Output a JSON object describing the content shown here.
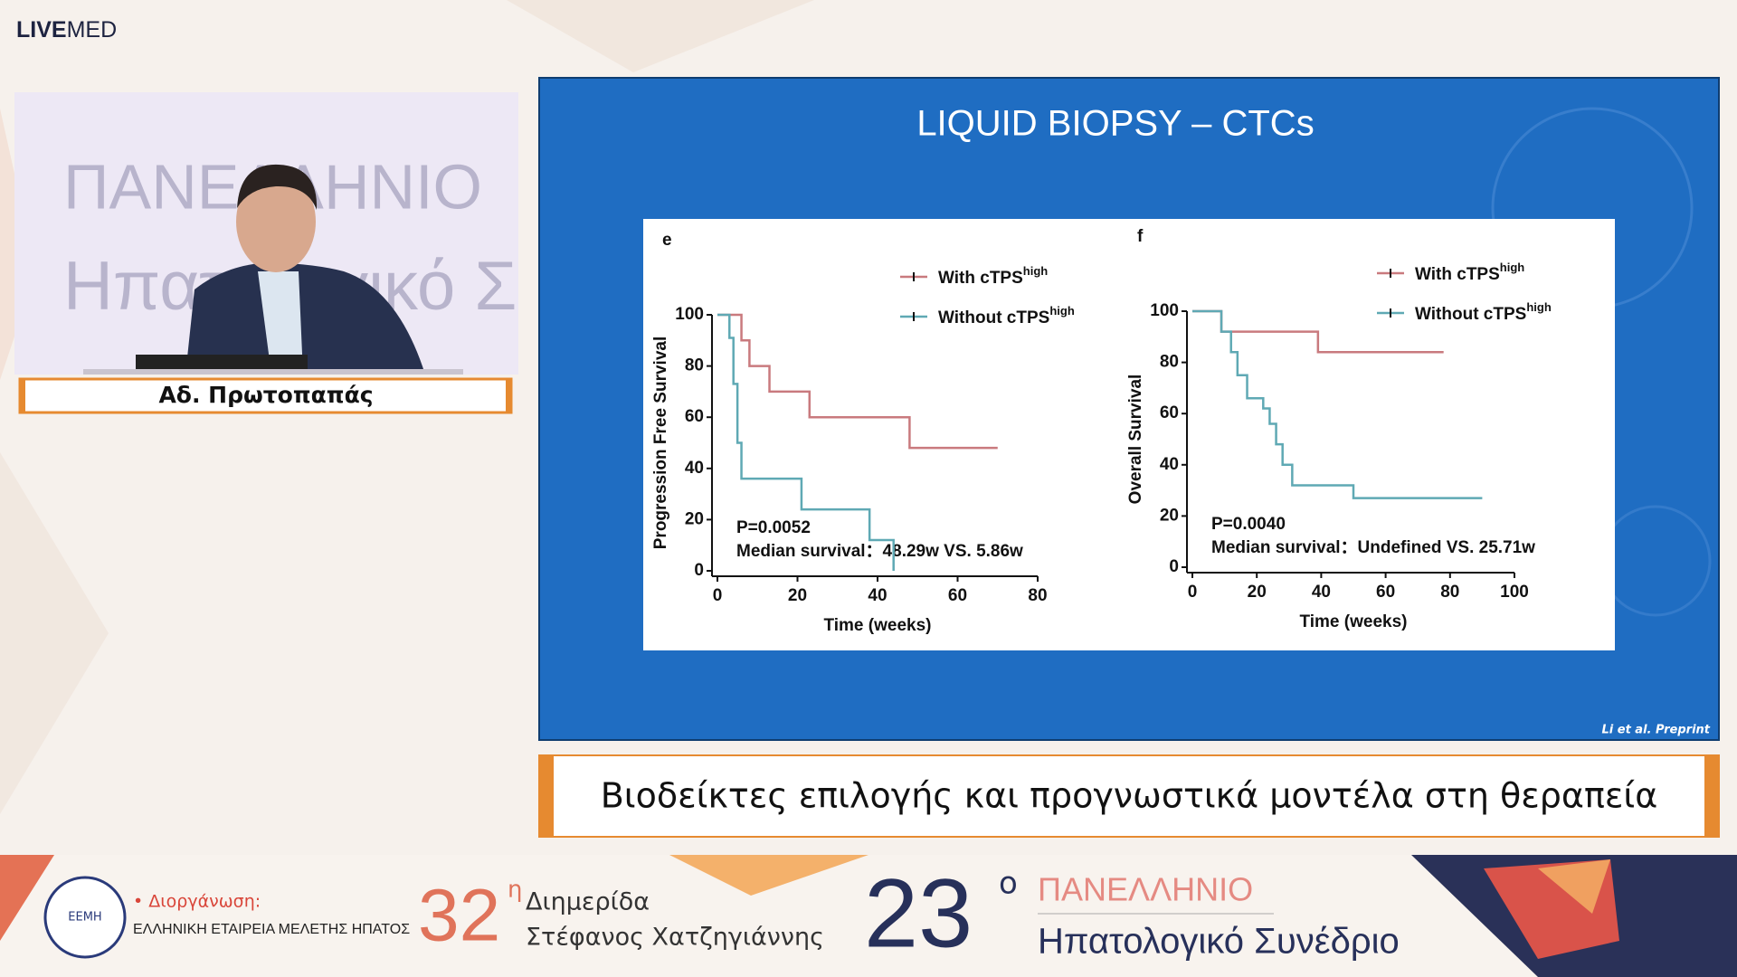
{
  "header": {
    "logo_bold": "LIVE",
    "logo_light": "MED"
  },
  "video": {
    "backdrop_line1": "ΠΑΝΕΛΛΗΝΙΟ",
    "backdrop_line2": "Ηπατολογικό Σ"
  },
  "speaker": {
    "name": "Αδ. Πρωτοπαπάς"
  },
  "slide": {
    "title": "LIQUID BIOPSY – CTCs",
    "citation": "Li et al. Preprint"
  },
  "subtitle": "Βιοδείκτες επιλογής και προγνωστικά μοντέλα στη θεραπεία",
  "footer": {
    "organizer_label": "• Διοργάνωση:",
    "organizer": "ΕΛΛΗΝΙΚΗ ΕΤΑΙΡΕΙΑ ΜΕΛΕΤΗΣ ΗΠΑΤΟΣ",
    "logo": "ΕΕΜΗ",
    "event1_number": "32",
    "event1_sup": "η",
    "event1_line1": "Διημερίδα",
    "event1_line2": "Στέφανος Χατζηγιάννης",
    "event2_number": "23",
    "event2_sup": "ο",
    "event2_line1": "ΠΑΝΕΛΛΗΝΙΟ",
    "event2_line2": "Ηπατολογικό Συνέδριο"
  },
  "chart_data": [
    {
      "type": "step",
      "panel": "e",
      "ylabel": "Progression Free Survival",
      "xlabel": "Time (weeks)",
      "xlim": [
        0,
        80
      ],
      "ylim": [
        0,
        100
      ],
      "xticks": [
        0,
        20,
        40,
        60,
        80
      ],
      "yticks": [
        0,
        20,
        40,
        60,
        80,
        100
      ],
      "legend": "upper right",
      "annotations": [
        "P=0.0052",
        "Median survival：48.29w VS. 5.86w"
      ],
      "series": [
        {
          "name": "With cTPS",
          "name_sup": "high",
          "color": "#c97a7e",
          "x": [
            0,
            6,
            8,
            13,
            23,
            48,
            70
          ],
          "values": [
            100,
            90,
            80,
            70,
            60,
            48,
            48
          ]
        },
        {
          "name": "Without cTPS",
          "name_sup": "high",
          "color": "#5fa9b4",
          "x": [
            0,
            3,
            4,
            5,
            6,
            21,
            38,
            44
          ],
          "values": [
            100,
            91,
            73,
            50,
            36,
            24,
            12,
            0
          ]
        }
      ]
    },
    {
      "type": "step",
      "panel": "f",
      "ylabel": "Overall Survival",
      "xlabel": "Time (weeks)",
      "xlim": [
        0,
        100
      ],
      "ylim": [
        0,
        100
      ],
      "xticks": [
        0,
        20,
        40,
        60,
        80,
        100
      ],
      "yticks": [
        0,
        20,
        40,
        60,
        80,
        100
      ],
      "legend": "upper right",
      "annotations": [
        "P=0.0040",
        "Median survival：Undefined VS. 25.71w"
      ],
      "series": [
        {
          "name": "With cTPS",
          "name_sup": "high",
          "color": "#c97a7e",
          "x": [
            0,
            9,
            39,
            78
          ],
          "values": [
            100,
            92,
            84,
            84
          ]
        },
        {
          "name": "Without cTPS",
          "name_sup": "high",
          "color": "#5fa9b4",
          "x": [
            0,
            9,
            12,
            14,
            17,
            22,
            24,
            26,
            28,
            31,
            50,
            90
          ],
          "values": [
            100,
            92,
            84,
            75,
            66,
            62,
            56,
            48,
            40,
            32,
            27,
            27
          ]
        }
      ]
    }
  ]
}
